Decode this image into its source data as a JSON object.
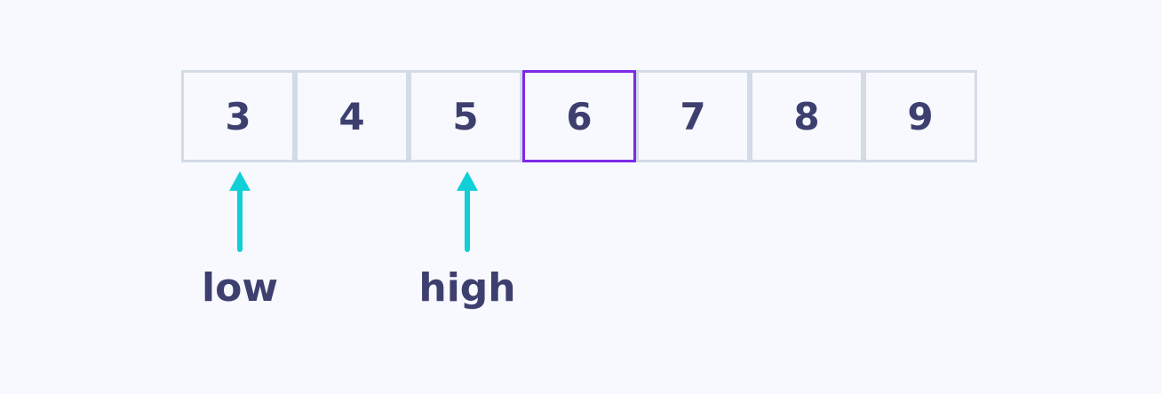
{
  "array": {
    "cells": [
      {
        "value": "3"
      },
      {
        "value": "4"
      },
      {
        "value": "5"
      },
      {
        "value": "6",
        "highlighted": true
      },
      {
        "value": "7"
      },
      {
        "value": "8"
      },
      {
        "value": "9"
      }
    ]
  },
  "pointers": {
    "low": {
      "label": "low",
      "index": 0
    },
    "high": {
      "label": "high",
      "index": 2
    }
  },
  "colors": {
    "background": "#f7f9fe",
    "cell_border": "#d3dbe7",
    "highlight_border": "#7d2ae8",
    "arrow": "#10cfd6",
    "text": "#3d3f6e"
  }
}
